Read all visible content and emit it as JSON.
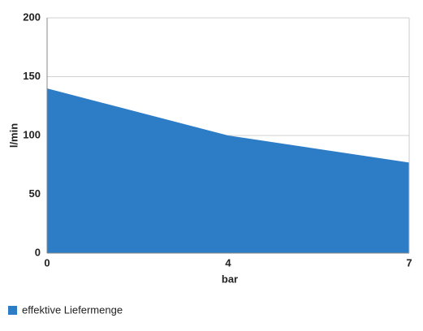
{
  "chart_data": {
    "type": "area",
    "x_label": "bar",
    "y_label": "l/min",
    "categories": [
      "0",
      "4",
      "7"
    ],
    "series": [
      {
        "name": "effektive Liefermenge",
        "color": "#2d7cc6",
        "values": [
          140,
          100,
          77
        ]
      }
    ],
    "ylim": [
      0,
      200
    ],
    "yticks": [
      0,
      50,
      100,
      150,
      200
    ],
    "grid": true
  }
}
